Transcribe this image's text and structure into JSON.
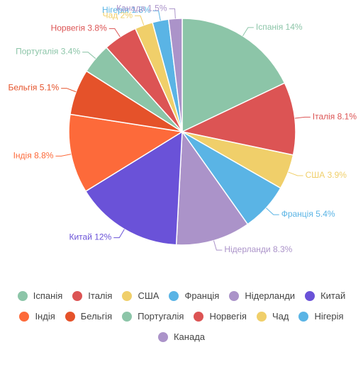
{
  "chart_data": {
    "type": "pie",
    "categories": [
      "Іспанія",
      "Італія",
      "США",
      "Франція",
      "Нідерланди",
      "Китай",
      "Індія",
      "Бельгія",
      "Португалія",
      "Норвегія",
      "Чад",
      "Нігерія",
      "Канада"
    ],
    "values": [
      14,
      8.1,
      3.9,
      5.4,
      8.3,
      12,
      8.8,
      5.1,
      3.4,
      3.8,
      2,
      1.8,
      1.5
    ],
    "value_labels": [
      "14%",
      "8.1%",
      "3.9%",
      "5.4%",
      "8.3%",
      "12%",
      "8.8%",
      "5.1%",
      "3.4%",
      "3.8%",
      "2%",
      "1.8%",
      "1.5%"
    ],
    "colors": [
      "#8cc5a8",
      "#dc5454",
      "#f0cf6a",
      "#5ab4e5",
      "#ab93c9",
      "#6a52d8",
      "#fd6a3a",
      "#e5522a",
      "#8cc5a8",
      "#dc5454",
      "#f0cf6a",
      "#5ab4e5",
      "#ab93c9"
    ],
    "legend": "bottom"
  }
}
